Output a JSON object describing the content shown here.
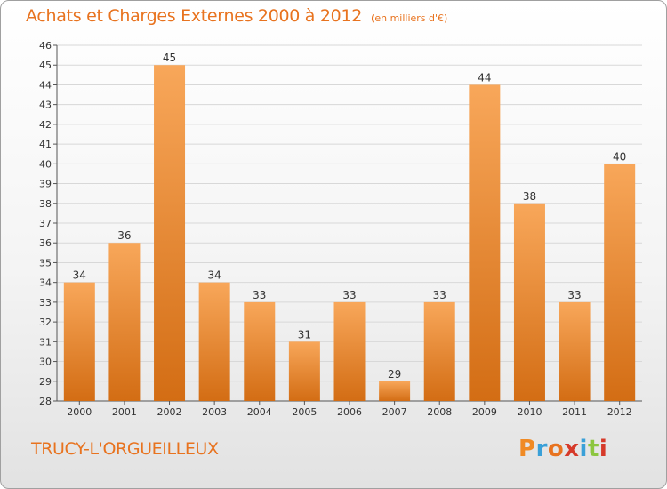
{
  "header": {
    "title": "Achats et Charges Externes 2000 à 2012",
    "unit": "(en milliers d'€)"
  },
  "footer": {
    "commune": "TRUCY-L'ORGUEILLEUX",
    "brand": "Proxiti",
    "brand_colors": [
      "#f08a24",
      "#3aa0d8",
      "#e8731f",
      "#d63a2a",
      "#3aa0d8",
      "#8cc63f",
      "#d63a2a"
    ]
  },
  "colors": {
    "bar_light": "#f8a75a",
    "bar_dark": "#d36d14",
    "text_orange": "#e8731f",
    "grid": "#d8d8d8"
  },
  "chart_data": {
    "type": "bar",
    "title": "Achats et Charges Externes 2000 à 2012",
    "subtitle": "(en milliers d'€)",
    "categories": [
      "2000",
      "2001",
      "2002",
      "2003",
      "2004",
      "2005",
      "2006",
      "2007",
      "2008",
      "2009",
      "2010",
      "2011",
      "2012"
    ],
    "values": [
      34,
      36,
      45,
      34,
      33,
      31,
      33,
      29,
      33,
      44,
      38,
      33,
      40
    ],
    "ylim": [
      28,
      46
    ],
    "yticks": [
      28,
      29,
      30,
      31,
      32,
      33,
      34,
      35,
      36,
      37,
      38,
      39,
      40,
      41,
      42,
      43,
      44,
      45,
      46
    ],
    "grid": true,
    "data_labels": true
  }
}
